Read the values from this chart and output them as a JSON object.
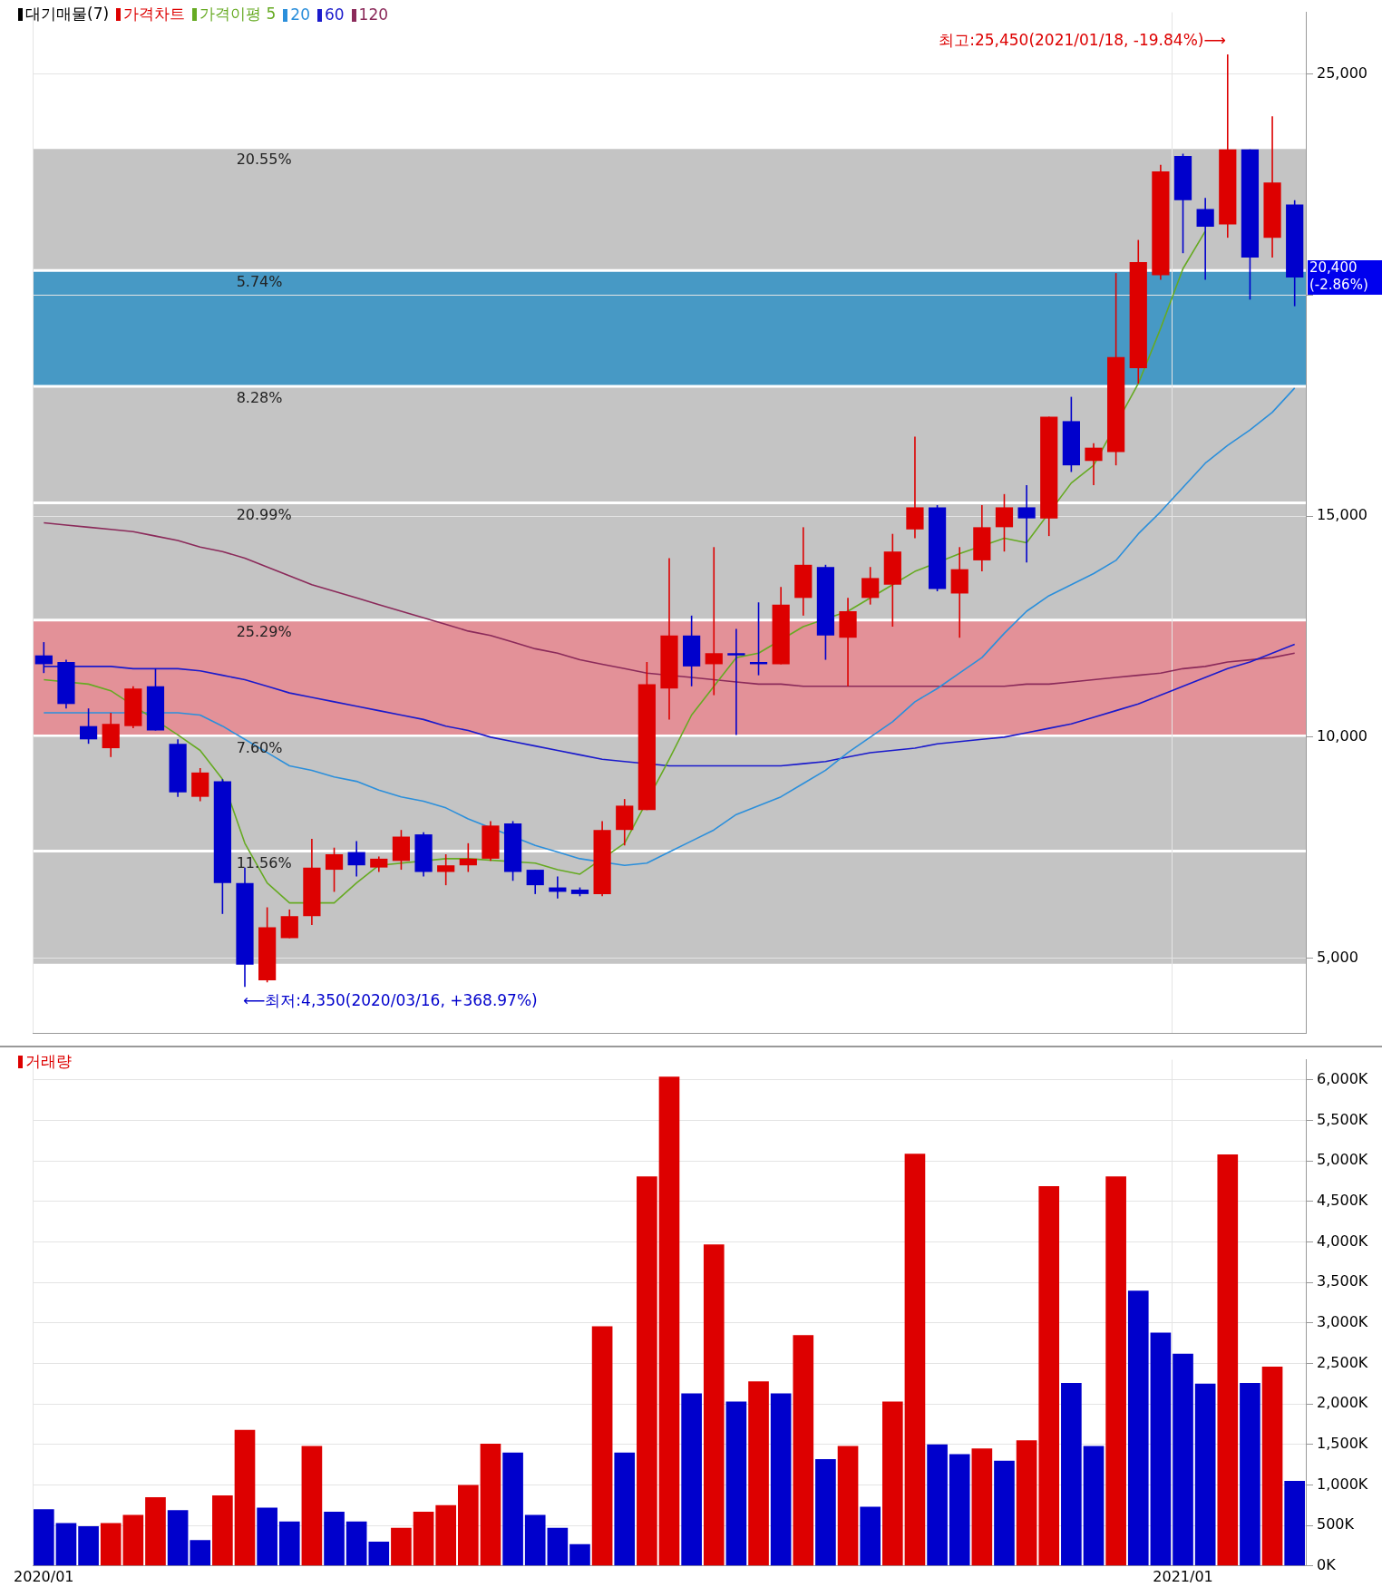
{
  "chart_data": [
    {
      "type": "candlestick",
      "legend_title": "대기매물(7)",
      "legend": "top left",
      "grid": true,
      "tick_labels": "y",
      "categories": [
        "2020/01",
        null,
        null,
        null,
        null,
        null,
        null,
        null,
        null,
        null,
        null,
        null,
        null,
        null,
        null,
        null,
        null,
        null,
        null,
        null,
        null,
        null,
        null,
        null,
        null,
        null,
        null,
        null,
        null,
        null,
        null,
        null,
        null,
        null,
        null,
        null,
        null,
        null,
        null,
        null,
        null,
        null,
        null,
        null,
        null,
        null,
        null,
        null,
        null,
        null,
        null,
        "2021/01",
        null,
        null,
        null,
        null,
        null
      ],
      "ylim": [
        3300,
        26400
      ],
      "yticks": [
        {
          "value": 5000,
          "label": "5,000"
        },
        {
          "value": 10000,
          "label": "10,000"
        },
        {
          "value": 15000,
          "label": "15,000"
        },
        {
          "value": 20000,
          "label": null
        },
        {
          "value": 25000,
          "label": "25,000"
        }
      ],
      "series": [
        {
          "name": "가격차트",
          "color": "#dd0000",
          "colors": [
            "#0000cc",
            "#0000cc",
            "#0000cc",
            "#dd0000",
            "#dd0000",
            "#0000cc",
            "#0000cc",
            "#dd0000",
            "#0000cc",
            "#0000cc",
            "#dd0000",
            "#dd0000",
            "#dd0000",
            "#dd0000",
            "#0000cc",
            "#dd0000",
            "#dd0000",
            "#0000cc",
            "#dd0000",
            "#dd0000",
            "#dd0000",
            "#0000cc",
            "#0000cc",
            "#0000cc",
            "#0000cc",
            "#dd0000",
            "#dd0000",
            "#dd0000",
            "#dd0000",
            "#0000cc",
            "#dd0000",
            "#0000cc",
            "#0000cc",
            "#dd0000",
            "#dd0000",
            "#0000cc",
            "#dd0000",
            "#dd0000",
            "#dd0000",
            "#dd0000",
            "#0000cc",
            "#dd0000",
            "#dd0000",
            "#dd0000",
            "#0000cc",
            "#dd0000",
            "#0000cc",
            "#dd0000",
            "#dd0000",
            "#dd0000",
            "#dd0000",
            "#0000cc",
            "#0000cc",
            "#dd0000",
            "#0000cc",
            "#dd0000",
            "#0000cc"
          ],
          "ohlc": [
            [
              11850,
              12150,
              11450,
              11650
            ],
            [
              11700,
              11750,
              10650,
              10750
            ],
            [
              10250,
              10650,
              9850,
              9950
            ],
            [
              9750,
              10550,
              9550,
              10300
            ],
            [
              10250,
              11150,
              10200,
              11100
            ],
            [
              11150,
              11550,
              10150,
              10150
            ],
            [
              9850,
              9950,
              8650,
              8750
            ],
            [
              8650,
              9300,
              8550,
              9200
            ],
            [
              9000,
              9050,
              6000,
              6700
            ],
            [
              6700,
              7050,
              4350,
              4850
            ],
            [
              4500,
              6150,
              4450,
              5700
            ],
            [
              5450,
              6100,
              5450,
              5950
            ],
            [
              5950,
              7700,
              5750,
              7050
            ],
            [
              7000,
              7500,
              6500,
              7350
            ],
            [
              7400,
              7650,
              6850,
              7100
            ],
            [
              7050,
              7300,
              6950,
              7250
            ],
            [
              7200,
              7900,
              7000,
              7750
            ],
            [
              7800,
              7850,
              6850,
              6950
            ],
            [
              6950,
              7350,
              6650,
              7100
            ],
            [
              7100,
              7600,
              6950,
              7250
            ],
            [
              7250,
              8100,
              7200,
              8000
            ],
            [
              8050,
              8100,
              6750,
              6950
            ],
            [
              7000,
              7000,
              6450,
              6650
            ],
            [
              6600,
              6850,
              6350,
              6500
            ],
            [
              6550,
              6600,
              6400,
              6450
            ],
            [
              6450,
              8100,
              6400,
              7900
            ],
            [
              7900,
              8600,
              7550,
              8450
            ],
            [
              8350,
              11700,
              8350,
              11200
            ],
            [
              11100,
              14050,
              10400,
              12300
            ],
            [
              12300,
              12750,
              11150,
              11600
            ],
            [
              11650,
              14300,
              10950,
              11900
            ],
            [
              11900,
              12450,
              10050,
              11850
            ],
            [
              11700,
              13050,
              11400,
              11650
            ],
            [
              11650,
              13400,
              11650,
              13000
            ],
            [
              13150,
              14750,
              12750,
              13900
            ],
            [
              13850,
              13900,
              11750,
              12300
            ],
            [
              12250,
              13150,
              11150,
              12850
            ],
            [
              13150,
              13850,
              13000,
              13600
            ],
            [
              13450,
              14600,
              12500,
              14200
            ],
            [
              14700,
              16800,
              14500,
              15200
            ],
            [
              15200,
              15250,
              13300,
              13350
            ],
            [
              13250,
              14300,
              12250,
              13800
            ],
            [
              14000,
              15250,
              13750,
              14750
            ],
            [
              14750,
              15500,
              14200,
              15200
            ],
            [
              15200,
              15700,
              13950,
              14950
            ],
            [
              14950,
              17250,
              14550,
              17250
            ],
            [
              17150,
              17700,
              16000,
              16150
            ],
            [
              16250,
              16650,
              15700,
              16550
            ],
            [
              16450,
              20500,
              16150,
              18600
            ],
            [
              18350,
              21250,
              18000,
              20750
            ],
            [
              20450,
              22950,
              20350,
              22800
            ],
            [
              23150,
              23200,
              20950,
              22150
            ],
            [
              21950,
              22200,
              20350,
              21550
            ],
            [
              21600,
              25450,
              21300,
              23300
            ],
            [
              23300,
              23300,
              19900,
              20850
            ],
            [
              21300,
              24050,
              20850,
              22550
            ],
            [
              22050,
              22150,
              19750,
              20400
            ]
          ]
        },
        {
          "name": "가격이평 5",
          "type": "line",
          "color": "#66aa22",
          "values": [
            11300,
            null,
            11200,
            11050,
            null,
            null,
            10050,
            9700,
            9050,
            7600,
            6700,
            6250,
            null,
            6250,
            6700,
            7100,
            null,
            null,
            7250,
            7250,
            null,
            null,
            7150,
            7000,
            6900,
            null,
            7600,
            null,
            9500,
            10500,
            11150,
            11800,
            11900,
            null,
            12500,
            null,
            12850,
            null,
            13450,
            13750,
            null,
            14150,
            null,
            14500,
            14400,
            null,
            15750,
            16150,
            null,
            18000,
            19250,
            20600,
            21450,
            null,
            null,
            null,
            null
          ]
        },
        {
          "name": "20",
          "type": "line",
          "color": "#2b8fdb",
          "values": [
            10550,
            10550,
            10550,
            10550,
            null,
            null,
            10550,
            10500,
            10250,
            9950,
            9650,
            9350,
            9250,
            9100,
            9000,
            8800,
            8650,
            8550,
            8400,
            8150,
            null,
            null,
            7550,
            7400,
            7250,
            null,
            7100,
            7150,
            7400,
            7650,
            7900,
            8250,
            8450,
            8650,
            8950,
            9250,
            9650,
            10000,
            10350,
            10800,
            11100,
            11450,
            11800,
            12350,
            12850,
            13200,
            13450,
            13700,
            14000,
            14600,
            15100,
            15650,
            16200,
            16600,
            16950,
            17350,
            17900
          ]
        },
        {
          "name": "60",
          "type": "line",
          "color": "#1a1acc",
          "values": [
            11600,
            null,
            11600,
            11600,
            11550,
            11550,
            11550,
            11500,
            11400,
            11300,
            11150,
            11000,
            10900,
            10800,
            10700,
            10600,
            10500,
            10400,
            10250,
            10150,
            10000,
            9900,
            9800,
            9700,
            9600,
            9500,
            9450,
            null,
            9350,
            9350,
            9350,
            9350,
            9350,
            9350,
            9400,
            9450,
            9550,
            9650,
            9700,
            9750,
            9850,
            9900,
            9950,
            10000,
            10100,
            10200,
            10300,
            10450,
            10600,
            10750,
            10950,
            11150,
            11350,
            11550,
            11700,
            11900,
            12100
          ]
        },
        {
          "name": "120",
          "type": "line",
          "color": "#8b2a5a",
          "values": [
            14850,
            14800,
            14750,
            14700,
            14650,
            14550,
            14450,
            14300,
            14200,
            14050,
            13850,
            13650,
            13450,
            13300,
            13150,
            13000,
            12850,
            12700,
            12550,
            12400,
            12300,
            12150,
            12000,
            11900,
            11750,
            11650,
            11550,
            11450,
            null,
            11350,
            11300,
            11250,
            11200,
            11200,
            11150,
            11150,
            11150,
            11150,
            11150,
            11150,
            11150,
            11150,
            11150,
            11150,
            11200,
            11200,
            11250,
            11300,
            11350,
            11400,
            11450,
            11550,
            11600,
            11700,
            11750,
            11800,
            11900
          ]
        }
      ],
      "bands": [
        {
          "axis": "y",
          "from": 20560,
          "to": 23340,
          "label": "20.55%",
          "color": "#c4c4c4"
        },
        {
          "axis": "y",
          "from": 17940,
          "to": 20560,
          "label": "5.74%",
          "color": "#4799c5"
        },
        {
          "axis": "y",
          "from": 15300,
          "to": 17940,
          "label": "8.28%",
          "color": "#c4c4c4"
        },
        {
          "axis": "y",
          "from": 12650,
          "to": 15300,
          "label": "20.99%",
          "color": "#c4c4c4"
        },
        {
          "axis": "y",
          "from": 10030,
          "to": 12650,
          "label": "25.29%",
          "color": "#e39198"
        },
        {
          "axis": "y",
          "from": 7420,
          "to": 10030,
          "label": "7.60%",
          "color": "#c4c4c4"
        },
        {
          "axis": "y",
          "from": 4840,
          "to": 7420,
          "label": "11.56%",
          "color": "#c4c4c4"
        }
      ],
      "annotations": [
        "최고:25,450(2021/01/18, -19.84%)⟶",
        "⟵최저:4,350(2020/03/16, +368.97%)",
        "20,400 (-2.86%)"
      ]
    },
    {
      "type": "bar",
      "legend": "top left",
      "grid": true,
      "categories": [
        "2020/01",
        null,
        null,
        null,
        null,
        null,
        null,
        null,
        null,
        null,
        null,
        null,
        null,
        null,
        null,
        null,
        null,
        null,
        null,
        null,
        null,
        null,
        null,
        null,
        null,
        null,
        null,
        null,
        null,
        null,
        null,
        null,
        null,
        null,
        null,
        null,
        null,
        null,
        null,
        null,
        null,
        null,
        null,
        null,
        null,
        null,
        null,
        null,
        null,
        null,
        null,
        "2021/01",
        null,
        null,
        null,
        null,
        null
      ],
      "ylim": [
        0,
        6250
      ],
      "yticks": [
        {
          "value": 0,
          "label": "0K"
        },
        {
          "value": 500,
          "label": "500K"
        },
        {
          "value": 1000,
          "label": "1,000K"
        },
        {
          "value": 1500,
          "label": "1,500K"
        },
        {
          "value": 2000,
          "label": "2,000K"
        },
        {
          "value": 2500,
          "label": "2,500K"
        },
        {
          "value": 3000,
          "label": "3,000K"
        },
        {
          "value": 3500,
          "label": "3,500K"
        },
        {
          "value": 4000,
          "label": "4,000K"
        },
        {
          "value": 4500,
          "label": "4,500K"
        },
        {
          "value": 5000,
          "label": "5,000K"
        },
        {
          "value": 5500,
          "label": "5,500K"
        },
        {
          "value": 6000,
          "label": "6,000K"
        }
      ],
      "series": [
        {
          "name": "거래량",
          "color": "#dd0000",
          "colors": [
            "#0000cc",
            "#0000cc",
            "#0000cc",
            "#dd0000",
            "#dd0000",
            "#dd0000",
            "#0000cc",
            "#0000cc",
            "#dd0000",
            "#dd0000",
            "#0000cc",
            "#0000cc",
            "#dd0000",
            "#0000cc",
            "#0000cc",
            "#0000cc",
            "#dd0000",
            "#dd0000",
            "#dd0000",
            "#dd0000",
            "#dd0000",
            "#0000cc",
            "#0000cc",
            "#0000cc",
            "#0000cc",
            "#dd0000",
            "#0000cc",
            "#dd0000",
            "#dd0000",
            "#0000cc",
            "#dd0000",
            "#0000cc",
            "#dd0000",
            "#0000cc",
            "#dd0000",
            "#0000cc",
            "#dd0000",
            "#0000cc",
            "#dd0000",
            "#dd0000",
            "#0000cc",
            "#0000cc",
            "#dd0000",
            "#0000cc",
            "#dd0000",
            "#dd0000",
            "#0000cc",
            "#0000cc",
            "#dd0000",
            "#0000cc",
            "#0000cc",
            "#0000cc",
            "#0000cc",
            "#dd0000",
            "#0000cc",
            "#dd0000",
            "#0000cc"
          ],
          "values": [
            700,
            530,
            490,
            530,
            630,
            850,
            690,
            320,
            870,
            1680,
            720,
            550,
            1480,
            670,
            550,
            300,
            470,
            670,
            750,
            1000,
            1510,
            1400,
            630,
            470,
            270,
            2960,
            1400,
            4810,
            6040,
            2130,
            3970,
            2030,
            2280,
            2130,
            2850,
            1320,
            1480,
            730,
            2030,
            5090,
            1500,
            1380,
            1450,
            1300,
            1550,
            4690,
            2260,
            1480,
            4810,
            3400,
            2880,
            2620,
            2250,
            5080,
            2260,
            2460,
            1050
          ]
        }
      ]
    }
  ]
}
